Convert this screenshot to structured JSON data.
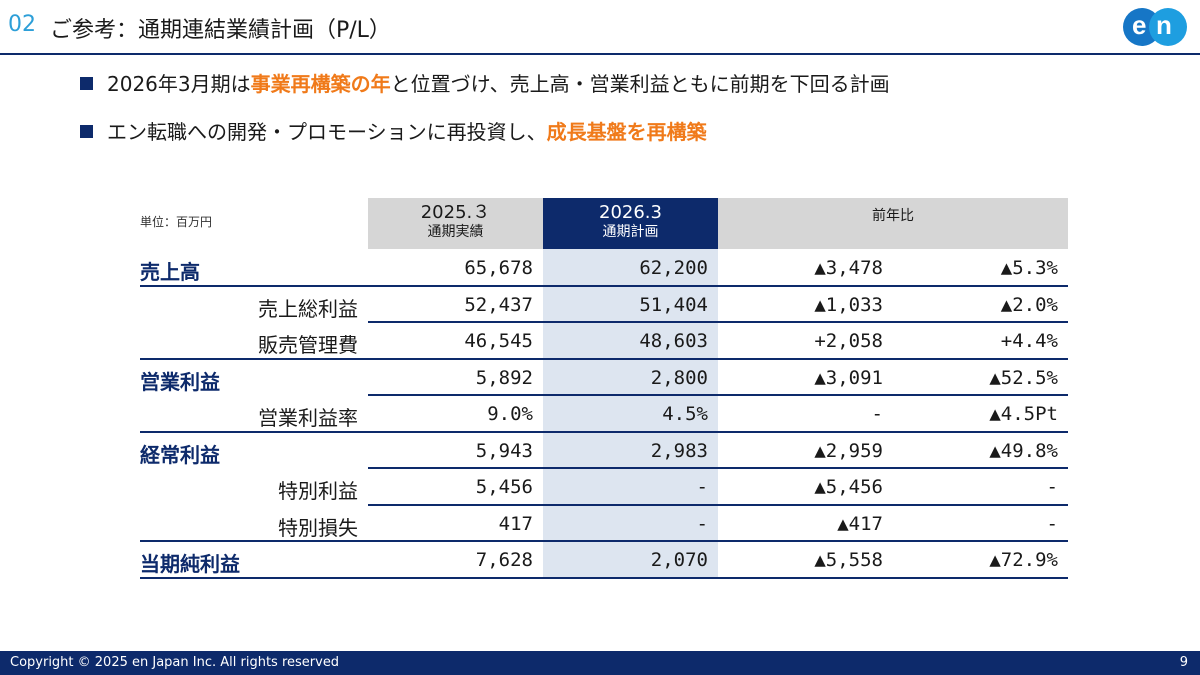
{
  "header": {
    "number": "02",
    "title": "ご参考：通期連結業績計画（P/L）",
    "logo_text_1": "e",
    "logo_text_2": "n",
    "colors": {
      "navy": "#0d2a6b",
      "accent_blue": "#2d9fd8",
      "highlight_orange": "#f07a1a"
    }
  },
  "bullets": [
    {
      "pre": "2026年3月期は",
      "hl": "事業再構築の年",
      "post": "と位置づけ、売上高・営業利益ともに前期を下回る計画"
    },
    {
      "pre": "エン転職への開発・プロモーションに再投資し、",
      "hl": "成長基盤を再構築",
      "post": ""
    }
  ],
  "table": {
    "unit": "単位：百万円",
    "columns": [
      {
        "top": "2025.３",
        "bottom": "通期実績"
      },
      {
        "top": "2026.3",
        "bottom": "通期計画"
      },
      {
        "top": "前年比",
        "bottom": ""
      }
    ],
    "rows": [
      {
        "label": "売上高",
        "v1": "65,678",
        "v2": "62,200",
        "v3": "▲3,478",
        "v4": "▲5.3%"
      },
      {
        "label": "売上総利益",
        "v1": "52,437",
        "v2": "51,404",
        "v3": "▲1,033",
        "v4": "▲2.0%"
      },
      {
        "label": "販売管理費",
        "v1": "46,545",
        "v2": "48,603",
        "v3": "+2,058",
        "v4": "+4.4%"
      },
      {
        "label": "営業利益",
        "v1": "5,892",
        "v2": "2,800",
        "v3": "▲3,091",
        "v4": "▲52.5%"
      },
      {
        "label": "営業利益率",
        "v1": "9.0%",
        "v2": "4.5%",
        "v3": "-",
        "v4": "▲4.5Pt"
      },
      {
        "label": "経常利益",
        "v1": "5,943",
        "v2": "2,983",
        "v3": "▲2,959",
        "v4": "▲49.8%"
      },
      {
        "label": "特別利益",
        "v1": "5,456",
        "v2": "-",
        "v3": "▲5,456",
        "v4": "-"
      },
      {
        "label": "特別損失",
        "v1": "417",
        "v2": "-",
        "v3": "▲417",
        "v4": "-"
      },
      {
        "label": "当期純利益",
        "v1": "7,628",
        "v2": "2,070",
        "v3": "▲5,558",
        "v4": "▲72.9%"
      }
    ]
  },
  "footer": {
    "copyright": "Copyright © 2025 en Japan Inc. All rights reserved",
    "page": "9"
  }
}
